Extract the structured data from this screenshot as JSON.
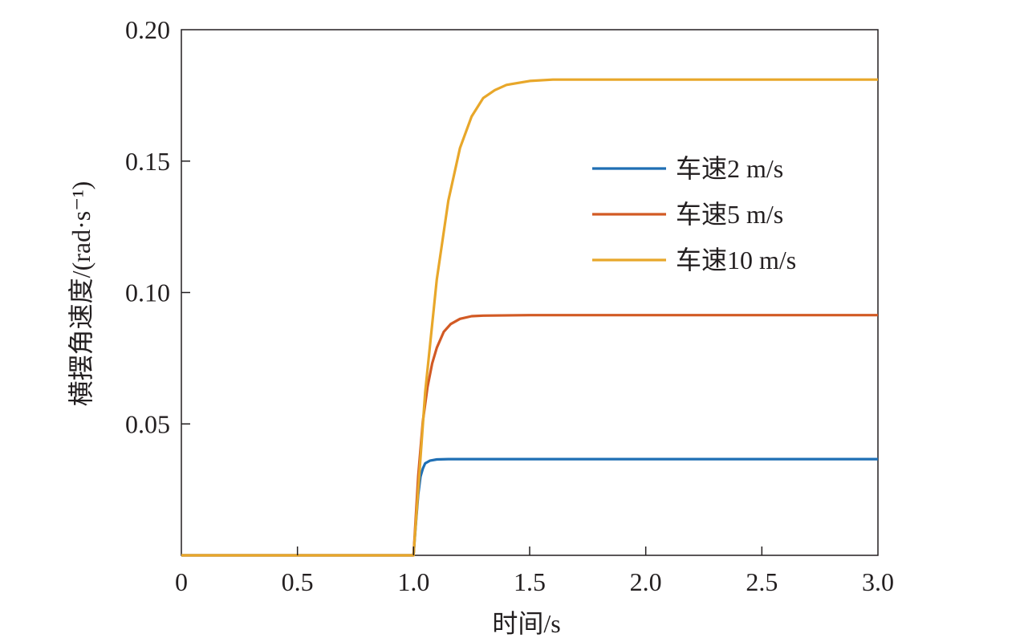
{
  "chart_data": {
    "type": "line",
    "title": "",
    "xlabel": "时间/s",
    "ylabel": "横摆角速度/(rad·s⁻¹)",
    "xlim": [
      0,
      3.0
    ],
    "ylim": [
      0,
      0.2
    ],
    "x_ticks": [
      0,
      0.5,
      1.0,
      1.5,
      2.0,
      2.5,
      3.0
    ],
    "x_tick_labels": [
      "0",
      "0.5",
      "1.0",
      "1.5",
      "2.0",
      "2.5",
      "3.0"
    ],
    "y_ticks": [
      0.05,
      0.1,
      0.15,
      0.2
    ],
    "y_tick_labels": [
      "0.05",
      "0.10",
      "0.15",
      "0.20"
    ],
    "grid": false,
    "legend_position": "right",
    "series": [
      {
        "name": "车速2 m/s",
        "color": "#1f6fb4",
        "x": [
          0,
          0.5,
          1.0,
          1.01,
          1.02,
          1.03,
          1.04,
          1.05,
          1.07,
          1.1,
          1.15,
          1.2,
          1.5,
          2.0,
          2.5,
          3.0
        ],
        "y": [
          0,
          0,
          0,
          0.012,
          0.023,
          0.03,
          0.033,
          0.035,
          0.036,
          0.0365,
          0.0366,
          0.0366,
          0.0366,
          0.0366,
          0.0366,
          0.0366
        ]
      },
      {
        "name": "车速5 m/s",
        "color": "#d25a24",
        "x": [
          0,
          0.5,
          1.0,
          1.02,
          1.04,
          1.06,
          1.08,
          1.1,
          1.13,
          1.16,
          1.2,
          1.25,
          1.3,
          1.5,
          2.0,
          2.5,
          3.0
        ],
        "y": [
          0,
          0,
          0,
          0.03,
          0.051,
          0.064,
          0.073,
          0.079,
          0.085,
          0.088,
          0.09,
          0.091,
          0.0912,
          0.0914,
          0.0914,
          0.0914,
          0.0914
        ]
      },
      {
        "name": "车速10 m/s",
        "color": "#e8a72a",
        "x": [
          0,
          0.5,
          1.0,
          1.05,
          1.1,
          1.15,
          1.2,
          1.25,
          1.3,
          1.35,
          1.4,
          1.5,
          1.6,
          1.8,
          2.0,
          2.5,
          3.0
        ],
        "y": [
          0,
          0,
          0,
          0.062,
          0.105,
          0.135,
          0.155,
          0.167,
          0.174,
          0.177,
          0.179,
          0.1805,
          0.181,
          0.181,
          0.181,
          0.181,
          0.181
        ]
      }
    ]
  }
}
